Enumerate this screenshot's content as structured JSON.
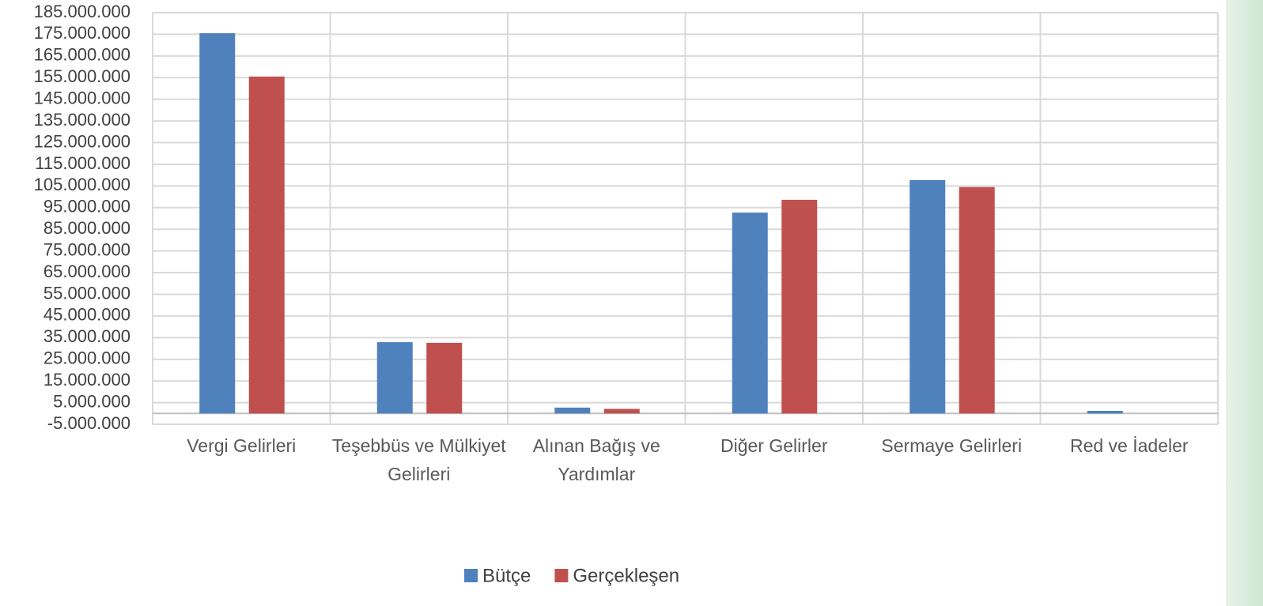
{
  "chart_data": {
    "type": "bar",
    "categories": [
      "Vergi Gelirleri",
      "Teşebbüs ve Mülkiyet Gelirleri",
      "Alınan Bağış ve Yardımlar",
      "Diğer Gelirler",
      "Sermaye Gelirleri",
      "Red ve İadeler"
    ],
    "series": [
      {
        "name": "Bütçe",
        "color": "#4f81bd",
        "values": [
          175500000,
          32900000,
          2700000,
          92700000,
          107700000,
          1200000
        ]
      },
      {
        "name": "Gerçekleşen",
        "color": "#c0504d",
        "values": [
          155500000,
          32600000,
          2100000,
          98600000,
          104500000,
          0
        ]
      }
    ],
    "ylim": [
      -5000000,
      185000000
    ],
    "yticks": [
      {
        "value": -5000000,
        "label": "-5.000.000"
      },
      {
        "value": 5000000,
        "label": "5.000.000"
      },
      {
        "value": 15000000,
        "label": "15.000.000"
      },
      {
        "value": 25000000,
        "label": "25.000.000"
      },
      {
        "value": 35000000,
        "label": "35.000.000"
      },
      {
        "value": 45000000,
        "label": "45.000.000"
      },
      {
        "value": 55000000,
        "label": "55.000.000"
      },
      {
        "value": 65000000,
        "label": "65.000.000"
      },
      {
        "value": 75000000,
        "label": "75.000.000"
      },
      {
        "value": 85000000,
        "label": "85.000.000"
      },
      {
        "value": 95000000,
        "label": "95.000.000"
      },
      {
        "value": 105000000,
        "label": "105.000.000"
      },
      {
        "value": 115000000,
        "label": "115.000.000"
      },
      {
        "value": 125000000,
        "label": "125.000.000"
      },
      {
        "value": 135000000,
        "label": "135.000.000"
      },
      {
        "value": 145000000,
        "label": "145.000.000"
      },
      {
        "value": 155000000,
        "label": "155.000.000"
      },
      {
        "value": 165000000,
        "label": "165.000.000"
      },
      {
        "value": 175000000,
        "label": "175.000.000"
      },
      {
        "value": 185000000,
        "label": "185.000.000"
      }
    ],
    "grid": true,
    "legend": "bottom"
  }
}
